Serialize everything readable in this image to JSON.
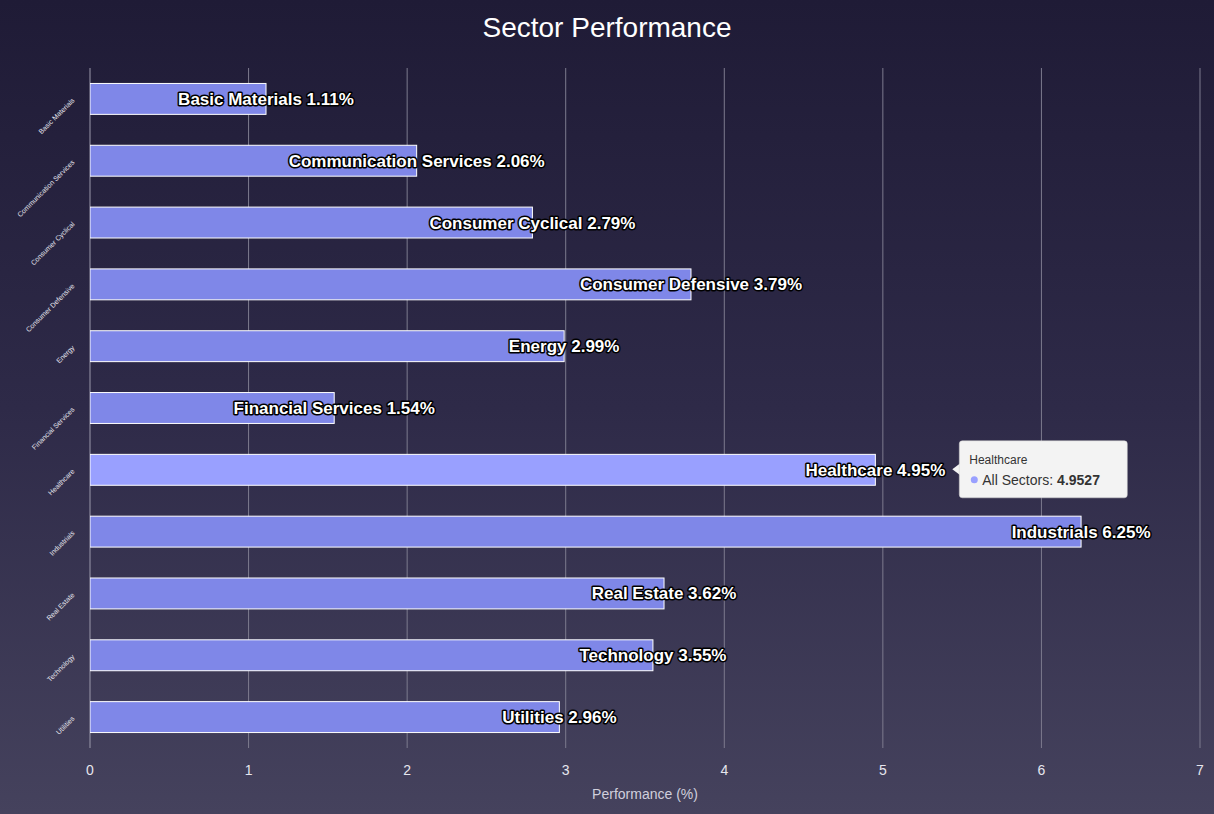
{
  "chart_data": {
    "type": "bar",
    "title": "Sector Performance",
    "x_label": "Performance (%)",
    "orientation": "horizontal",
    "grid": true,
    "data_labels": true,
    "categories": [
      "Basic Materials",
      "Communication Services",
      "Consumer Cyclical",
      "Consumer Defensive",
      "Energy",
      "Financial Services",
      "Healthcare",
      "Industrials",
      "Real Estate",
      "Technology",
      "Utilities"
    ],
    "values": [
      1.11,
      2.06,
      2.79,
      3.79,
      2.99,
      1.54,
      4.9527,
      6.25,
      3.62,
      3.55,
      2.96
    ],
    "value_labels": [
      "Basic Materials 1.11%",
      "Communication Services 2.06%",
      "Consumer Cyclical 2.79%",
      "Consumer Defensive 3.79%",
      "Energy 2.99%",
      "Financial Services 1.54%",
      "Healthcare 4.95%",
      "Industrials 6.25%",
      "Real Estate 3.62%",
      "Technology 3.55%",
      "Utilities 2.96%"
    ],
    "colors": [
      "#7f87e8",
      "#7f87e8",
      "#7f87e8",
      "#7f87e8",
      "#7f87e8",
      "#7f87e8",
      "#99a0ff",
      "#7f87e8",
      "#7f87e8",
      "#7f87e8",
      "#7f87e8"
    ],
    "xlim": [
      0,
      7
    ],
    "xticks": [
      0,
      1,
      2,
      3,
      4,
      5,
      6,
      7
    ],
    "tooltip": {
      "title": "Healthcare",
      "label": "All Sectors:",
      "value": 4.9527
    }
  }
}
